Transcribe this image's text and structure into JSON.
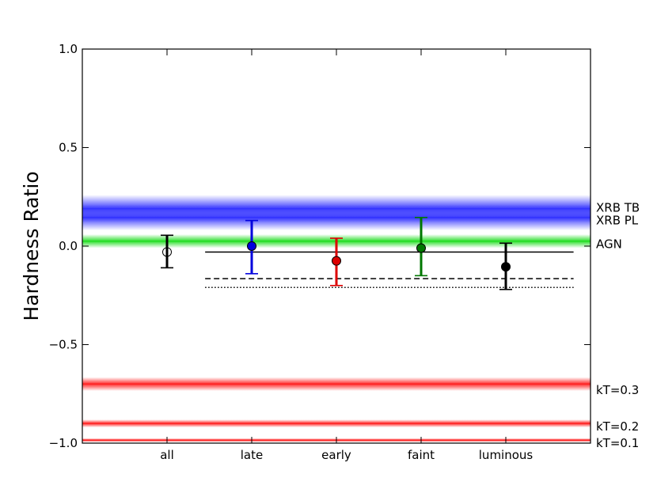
{
  "chart_data": {
    "type": "errorbar",
    "title": "",
    "xlabel": "",
    "ylabel": "Hardness Ratio",
    "ylim": [
      -1.0,
      1.0
    ],
    "yticks": [
      1.0,
      0.5,
      0.0,
      -0.5,
      -1.0
    ],
    "ytick_labels": [
      "1.0",
      "0.5",
      "0.0",
      "−0.5",
      "−1.0"
    ],
    "categories": [
      "all",
      "late",
      "early",
      "faint",
      "luminous"
    ],
    "grid": false,
    "points": [
      {
        "category": "all",
        "value": -0.03,
        "err_low": 0.08,
        "err_high": 0.085,
        "color": "#000000",
        "marker": "open-circle"
      },
      {
        "category": "late",
        "value": 0.0,
        "err_low": 0.14,
        "err_high": 0.13,
        "color": "#0000dd",
        "marker": "filled-circle"
      },
      {
        "category": "early",
        "value": -0.075,
        "err_low": 0.125,
        "err_high": 0.115,
        "color": "#dd0000",
        "marker": "filled-circle"
      },
      {
        "category": "faint",
        "value": -0.01,
        "err_low": 0.14,
        "err_high": 0.155,
        "color": "#007700",
        "marker": "filled-circle"
      },
      {
        "category": "luminous",
        "value": -0.105,
        "err_low": 0.115,
        "err_high": 0.12,
        "color": "#000000",
        "marker": "filled-circle"
      }
    ],
    "reference_lines": [
      {
        "y": -0.03,
        "style": "solid",
        "color": "#000000",
        "x_from": 0.45,
        "x_to": 4.8
      },
      {
        "y": -0.165,
        "style": "dashed",
        "color": "#000000",
        "x_from": 0.45,
        "x_to": 4.8
      },
      {
        "y": -0.21,
        "style": "dotted",
        "color": "#000000",
        "x_from": 0.45,
        "x_to": 4.8
      }
    ],
    "bands": [
      {
        "label": "XRB TB",
        "y": 0.19,
        "half_width": 0.07,
        "color": "#3333ff",
        "label_y": 0.195
      },
      {
        "label": "XRB PL",
        "y": 0.145,
        "half_width": 0.065,
        "color": "#3333ff",
        "label_y": 0.13
      },
      {
        "label": "AGN",
        "y": 0.025,
        "half_width": 0.035,
        "color": "#22dd22",
        "label_y": 0.01
      },
      {
        "label": "kT=0.3",
        "y": -0.7,
        "half_width": 0.035,
        "color": "#ff2222",
        "label_y": -0.73
      },
      {
        "label": "kT=0.2",
        "y": -0.9,
        "half_width": 0.02,
        "color": "#ff2222",
        "label_y": -0.915
      },
      {
        "label": "kT=0.1",
        "y": -0.985,
        "half_width": 0.01,
        "color": "#ff2222",
        "label_y": -1.0
      }
    ]
  }
}
